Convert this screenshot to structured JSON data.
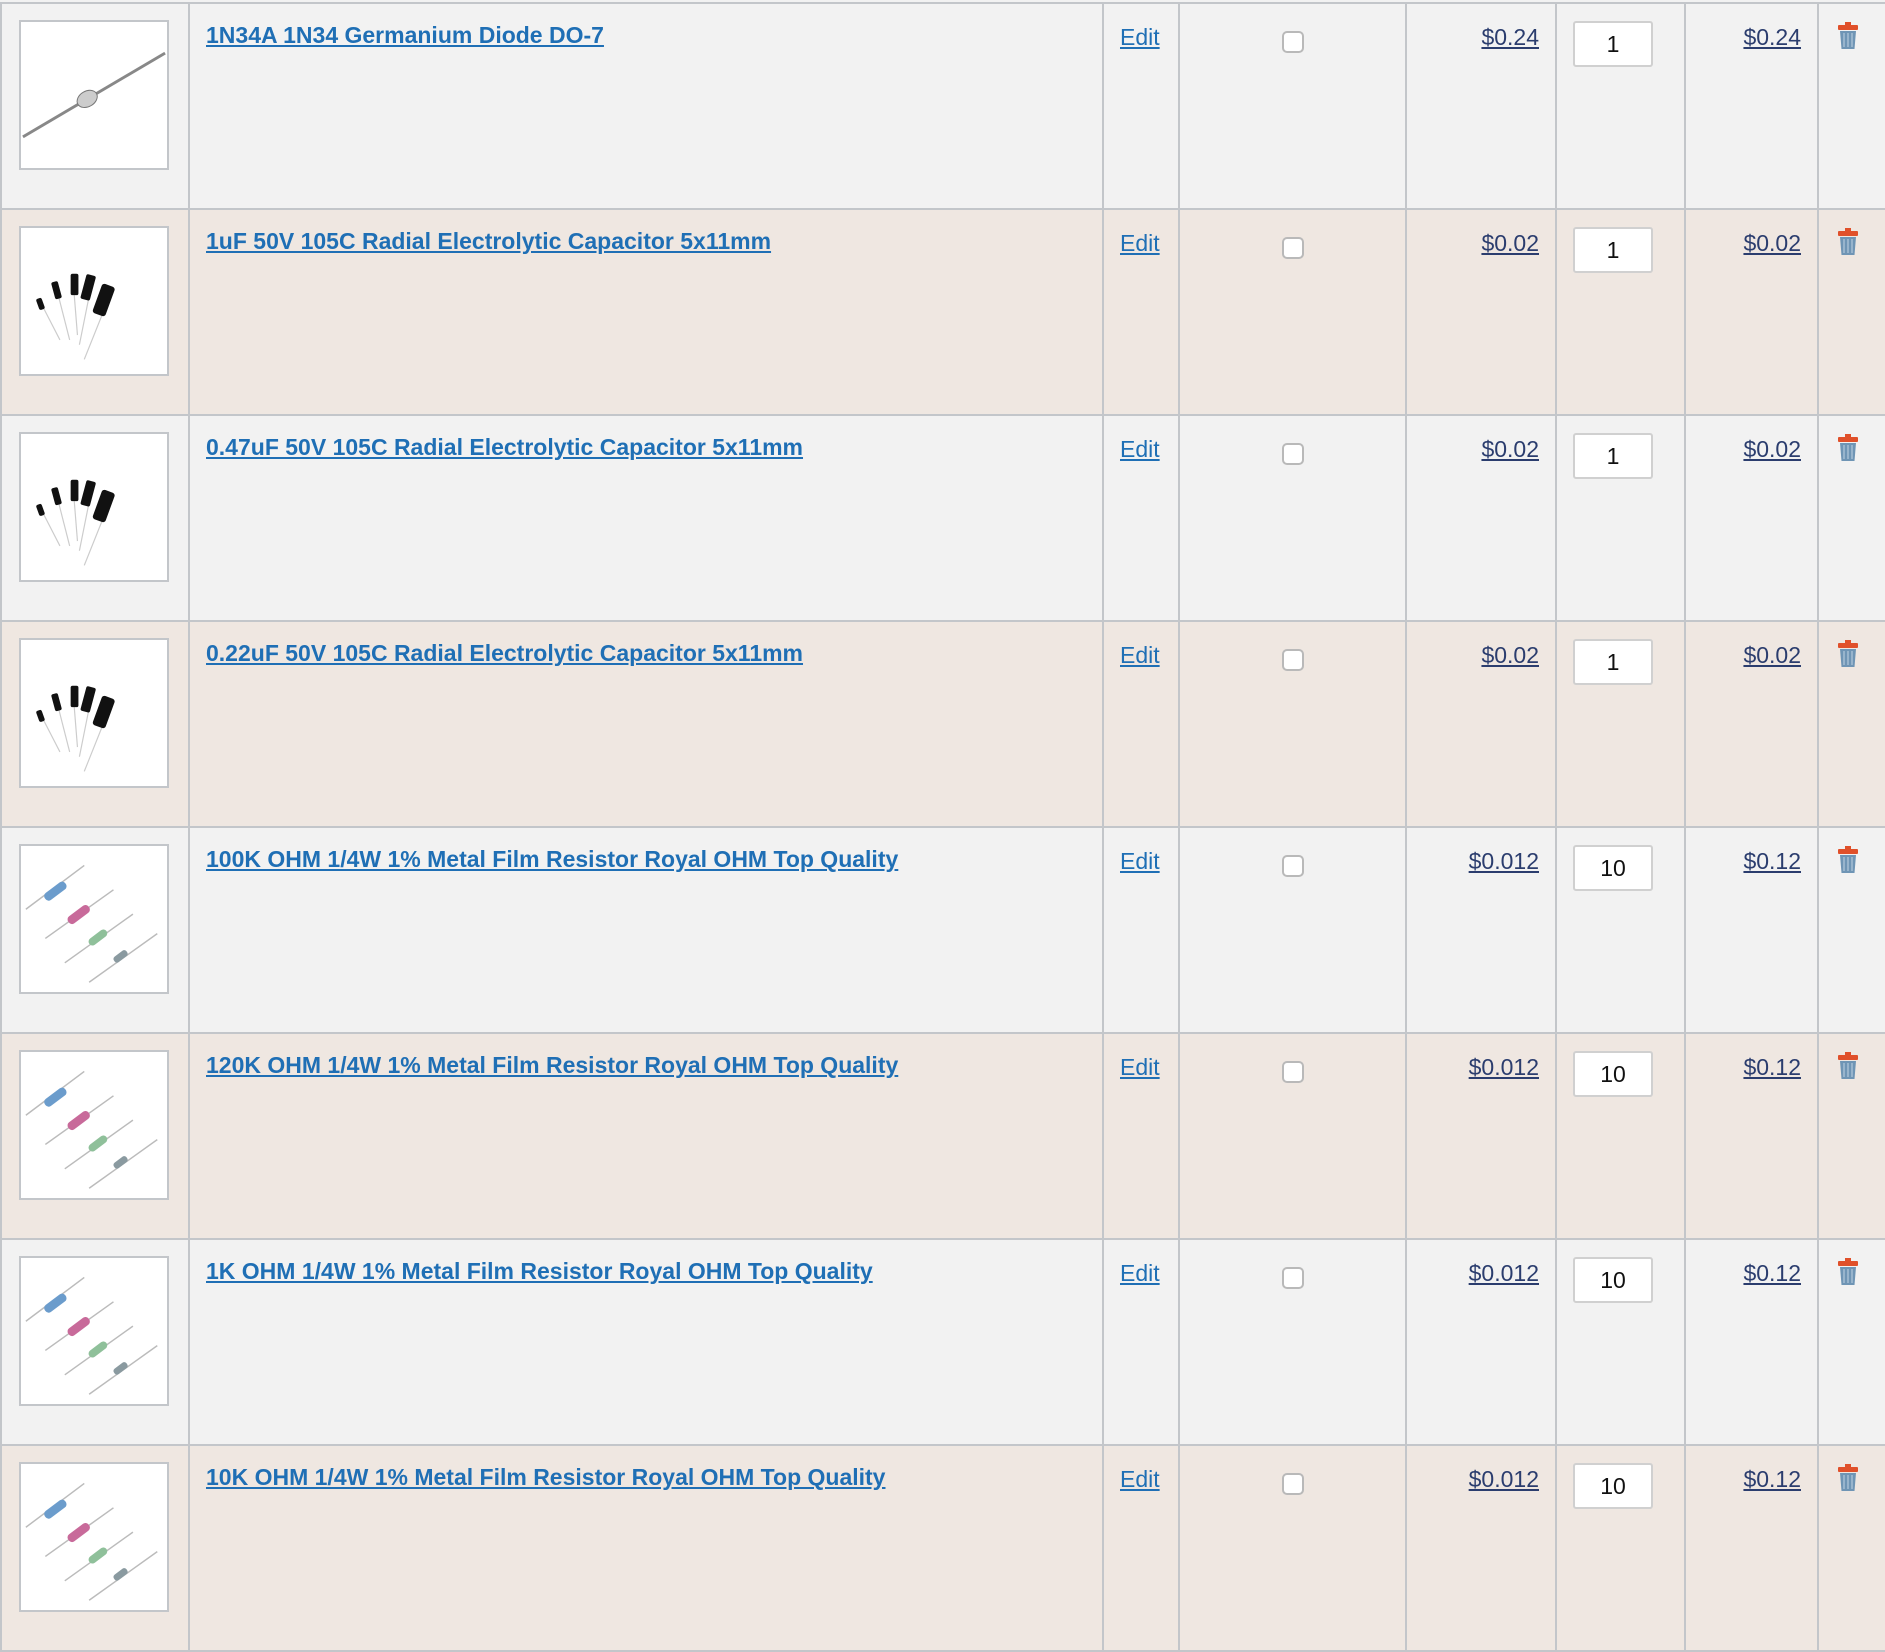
{
  "cart": {
    "edit_label": "Edit",
    "items": [
      {
        "title": "1N34A 1N34 Germanium Diode DO-7",
        "price": "$0.24",
        "qty": "1",
        "total": "$0.24",
        "image": "diode"
      },
      {
        "title": "1uF 50V 105C Radial Electrolytic Capacitor 5x11mm",
        "price": "$0.02",
        "qty": "1",
        "total": "$0.02",
        "image": "capacitor"
      },
      {
        "title": "0.47uF 50V 105C Radial Electrolytic Capacitor 5x11mm",
        "price": "$0.02",
        "qty": "1",
        "total": "$0.02",
        "image": "capacitor"
      },
      {
        "title": "0.22uF 50V 105C Radial Electrolytic Capacitor 5x11mm",
        "price": "$0.02",
        "qty": "1",
        "total": "$0.02",
        "image": "capacitor"
      },
      {
        "title": "100K OHM 1/4W 1% Metal Film Resistor Royal OHM Top Quality",
        "price": "$0.012",
        "qty": "10",
        "total": "$0.12",
        "image": "resistor"
      },
      {
        "title": "120K OHM 1/4W 1% Metal Film Resistor Royal OHM Top Quality",
        "price": "$0.012",
        "qty": "10",
        "total": "$0.12",
        "image": "resistor"
      },
      {
        "title": "1K OHM 1/4W 1% Metal Film Resistor Royal OHM Top Quality",
        "price": "$0.012",
        "qty": "10",
        "total": "$0.12",
        "image": "resistor"
      },
      {
        "title": "10K OHM 1/4W 1% Metal Film Resistor Royal OHM Top Quality",
        "price": "$0.012",
        "qty": "10",
        "total": "$0.12",
        "image": "resistor"
      }
    ]
  },
  "colors": {
    "link": "#1f6fb5",
    "price": "#2b3d6e",
    "row_odd": "#f2f2f2",
    "row_even": "#efe7e1",
    "trash_lid": "#e0502a",
    "trash_body": "#6f95b5"
  }
}
